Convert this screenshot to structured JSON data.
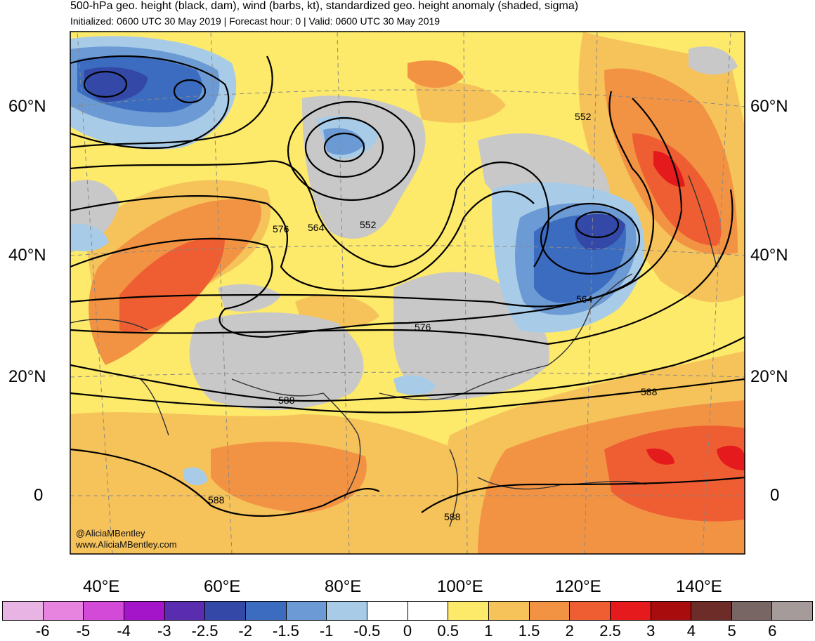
{
  "title": "500-hPa geo. height (black, dam), wind (barbs, kt), standardized geo. height anomaly (shaded, sigma)",
  "subtitle": "Initialized: 0600 UTC 30 May 2019 | Forecast hour: 0 | Valid: 0600 UTC 30 May 2019",
  "lat_labels": [
    "60°N",
    "40°N",
    "20°N",
    "0"
  ],
  "lon_labels": [
    "40°E",
    "60°E",
    "80°E",
    "100°E",
    "120°E",
    "140°E"
  ],
  "contour_labels": [
    "552",
    "552",
    "564",
    "564",
    "576",
    "576",
    "588",
    "588",
    "588",
    "588"
  ],
  "credit": {
    "handle": "@AliciaMBentley",
    "website": "www.AliciaMBentley.com"
  },
  "colorbar": {
    "ticks": [
      "-6",
      "-5",
      "-4",
      "-3",
      "-2.5",
      "-2",
      "-1.5",
      "-1",
      "-0.5",
      "0",
      "0.5",
      "1",
      "1.5",
      "2",
      "2.5",
      "3",
      "4",
      "5",
      "6"
    ],
    "colors": [
      "#e8b4e4",
      "#e684e0",
      "#d44ad8",
      "#a414c8",
      "#5a2cb0",
      "#3448a8",
      "#3c6cc0",
      "#6c9ad4",
      "#a8cce8",
      "#ffffff",
      "#ffffff",
      "#fde96a",
      "#f6c25a",
      "#f29344",
      "#ef5e32",
      "#e41a1c",
      "#a80c0c",
      "#6e2c28",
      "#786664",
      "#a59b9b"
    ]
  },
  "colors": {
    "positive_anomaly_base": "#fde96a",
    "neutral_gray": "#c8c8c8",
    "contour": "#000000"
  }
}
